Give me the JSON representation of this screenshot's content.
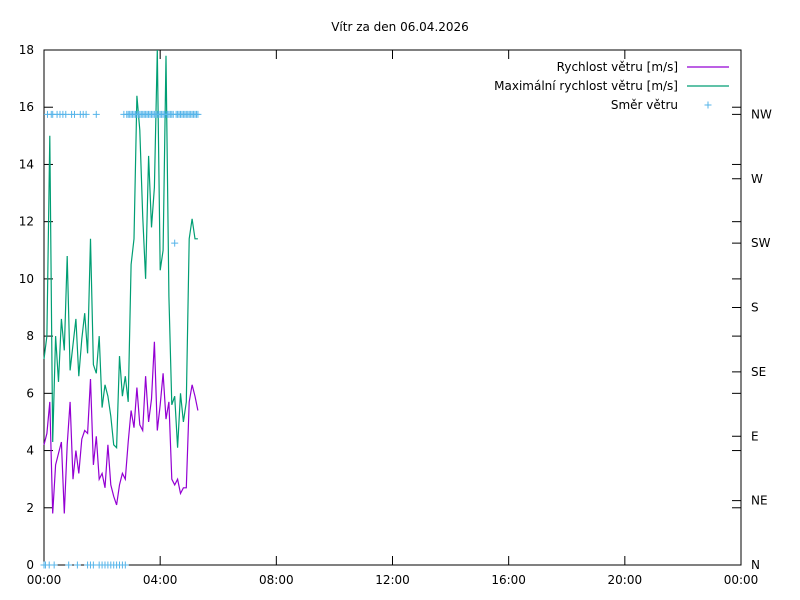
{
  "chart_data": {
    "type": "line",
    "title": "Vítr za den 06.04.2026",
    "xlabel": "",
    "ylabel": "",
    "x_ticks": [
      "00:00",
      "04:00",
      "08:00",
      "12:00",
      "16:00",
      "20:00",
      "00:00"
    ],
    "x_range_hours": [
      0,
      24
    ],
    "y_ticks": [
      0,
      2,
      4,
      6,
      8,
      10,
      12,
      14,
      16,
      18
    ],
    "ylim": [
      0,
      18
    ],
    "y2_ticks": [
      "N",
      "NE",
      "E",
      "SE",
      "S",
      "SW",
      "W",
      "NW"
    ],
    "y2_range_degrees": [
      0,
      360
    ],
    "grid": false,
    "legend_position": "top-right",
    "colors": {
      "speed": "#9400d3",
      "gust": "#009e73",
      "direction": "#56b4e9"
    },
    "series": [
      {
        "name": "Rychlost větru [m/s]",
        "axis": "y",
        "x_hours": [
          0,
          0.1,
          0.2,
          0.3,
          0.4,
          0.5,
          0.6,
          0.7,
          0.8,
          0.9,
          1.0,
          1.1,
          1.2,
          1.3,
          1.4,
          1.5,
          1.6,
          1.7,
          1.8,
          1.9,
          2.0,
          2.1,
          2.2,
          2.3,
          2.4,
          2.5,
          2.6,
          2.7,
          2.8,
          2.9,
          3.0,
          3.1,
          3.2,
          3.3,
          3.4,
          3.5,
          3.6,
          3.7,
          3.8,
          3.9,
          4.0,
          4.1,
          4.2,
          4.3,
          4.4,
          4.5,
          4.6,
          4.7,
          4.8,
          4.9,
          5.0,
          5.1,
          5.2,
          5.3
        ],
        "values": [
          4.2,
          4.6,
          5.7,
          1.8,
          3.5,
          3.9,
          4.3,
          1.8,
          4.2,
          5.7,
          3.0,
          4.0,
          3.2,
          4.4,
          4.7,
          4.6,
          6.5,
          3.5,
          4.5,
          3.0,
          3.2,
          2.7,
          4.2,
          2.8,
          2.4,
          2.1,
          2.8,
          3.2,
          3.0,
          4.3,
          5.4,
          4.8,
          6.2,
          4.9,
          4.7,
          6.6,
          5.0,
          5.8,
          7.8,
          4.7,
          5.6,
          6.7,
          5.1,
          5.7,
          3.0,
          2.8,
          3.0,
          2.5,
          2.7,
          2.7,
          5.7,
          6.3,
          5.9,
          5.4
        ]
      },
      {
        "name": "Maximální rychlost větru [m/s]",
        "axis": "y",
        "x_hours": [
          0,
          0.1,
          0.2,
          0.3,
          0.4,
          0.5,
          0.6,
          0.7,
          0.8,
          0.9,
          1.0,
          1.1,
          1.2,
          1.3,
          1.4,
          1.5,
          1.6,
          1.7,
          1.8,
          1.9,
          2.0,
          2.1,
          2.2,
          2.3,
          2.4,
          2.5,
          2.6,
          2.7,
          2.8,
          2.9,
          3.0,
          3.1,
          3.2,
          3.3,
          3.4,
          3.5,
          3.6,
          3.7,
          3.8,
          3.9,
          4.0,
          4.1,
          4.2,
          4.3,
          4.4,
          4.5,
          4.6,
          4.7,
          4.8,
          4.9,
          5.0,
          5.1,
          5.2,
          5.3
        ],
        "values": [
          7.2,
          8.0,
          15.0,
          4.3,
          8.0,
          6.4,
          8.6,
          7.5,
          10.8,
          6.8,
          7.7,
          8.6,
          6.6,
          7.9,
          8.8,
          7.4,
          11.4,
          7.0,
          6.7,
          8.0,
          5.5,
          6.3,
          5.9,
          5.2,
          4.2,
          4.1,
          7.3,
          5.9,
          6.6,
          5.7,
          10.5,
          11.4,
          16.4,
          15.2,
          12.2,
          10.0,
          14.3,
          11.8,
          13.2,
          18.0,
          10.3,
          11.0,
          17.8,
          9.4,
          5.6,
          5.9,
          4.1,
          6.0,
          5.0,
          5.7,
          11.4,
          12.1,
          11.4,
          11.4
        ]
      },
      {
        "name": "Směr větru",
        "axis": "y2",
        "marker": "+",
        "x_hours": [
          0.0,
          0.05,
          0.12,
          0.18,
          0.25,
          0.3,
          0.35,
          0.45,
          0.55,
          0.65,
          0.75,
          0.85,
          0.95,
          1.05,
          1.15,
          1.25,
          1.35,
          1.45,
          1.5,
          1.6,
          1.7,
          1.8,
          1.9,
          2.0,
          2.1,
          2.2,
          2.3,
          2.4,
          2.5,
          2.6,
          2.7,
          2.75,
          2.8,
          2.85,
          2.9,
          2.95,
          3.0,
          3.05,
          3.1,
          3.15,
          3.2,
          3.25,
          3.3,
          3.35,
          3.4,
          3.45,
          3.5,
          3.55,
          3.6,
          3.65,
          3.7,
          3.75,
          3.8,
          3.85,
          3.9,
          3.95,
          4.0,
          4.05,
          4.1,
          4.15,
          4.2,
          4.25,
          4.3,
          4.35,
          4.4,
          4.45,
          4.5,
          4.55,
          4.6,
          4.65,
          4.7,
          4.75,
          4.8,
          4.85,
          4.9,
          4.95,
          5.0,
          5.05,
          5.1,
          5.15,
          5.2,
          5.25,
          5.3
        ],
        "values": [
          0,
          0,
          315,
          0,
          315,
          315,
          0,
          315,
          315,
          315,
          315,
          0,
          315,
          315,
          0,
          315,
          315,
          315,
          0,
          0,
          0,
          315,
          0,
          0,
          0,
          0,
          0,
          0,
          0,
          0,
          0,
          315,
          0,
          315,
          315,
          315,
          315,
          315,
          315,
          315,
          315,
          315,
          315,
          315,
          315,
          315,
          315,
          315,
          315,
          315,
          315,
          315,
          315,
          315,
          315,
          315,
          315,
          315,
          315,
          315,
          315,
          315,
          315,
          315,
          315,
          315,
          225,
          315,
          315,
          315,
          315,
          315,
          315,
          315,
          315,
          315,
          315,
          315,
          315,
          315,
          315,
          315,
          315
        ]
      }
    ]
  }
}
